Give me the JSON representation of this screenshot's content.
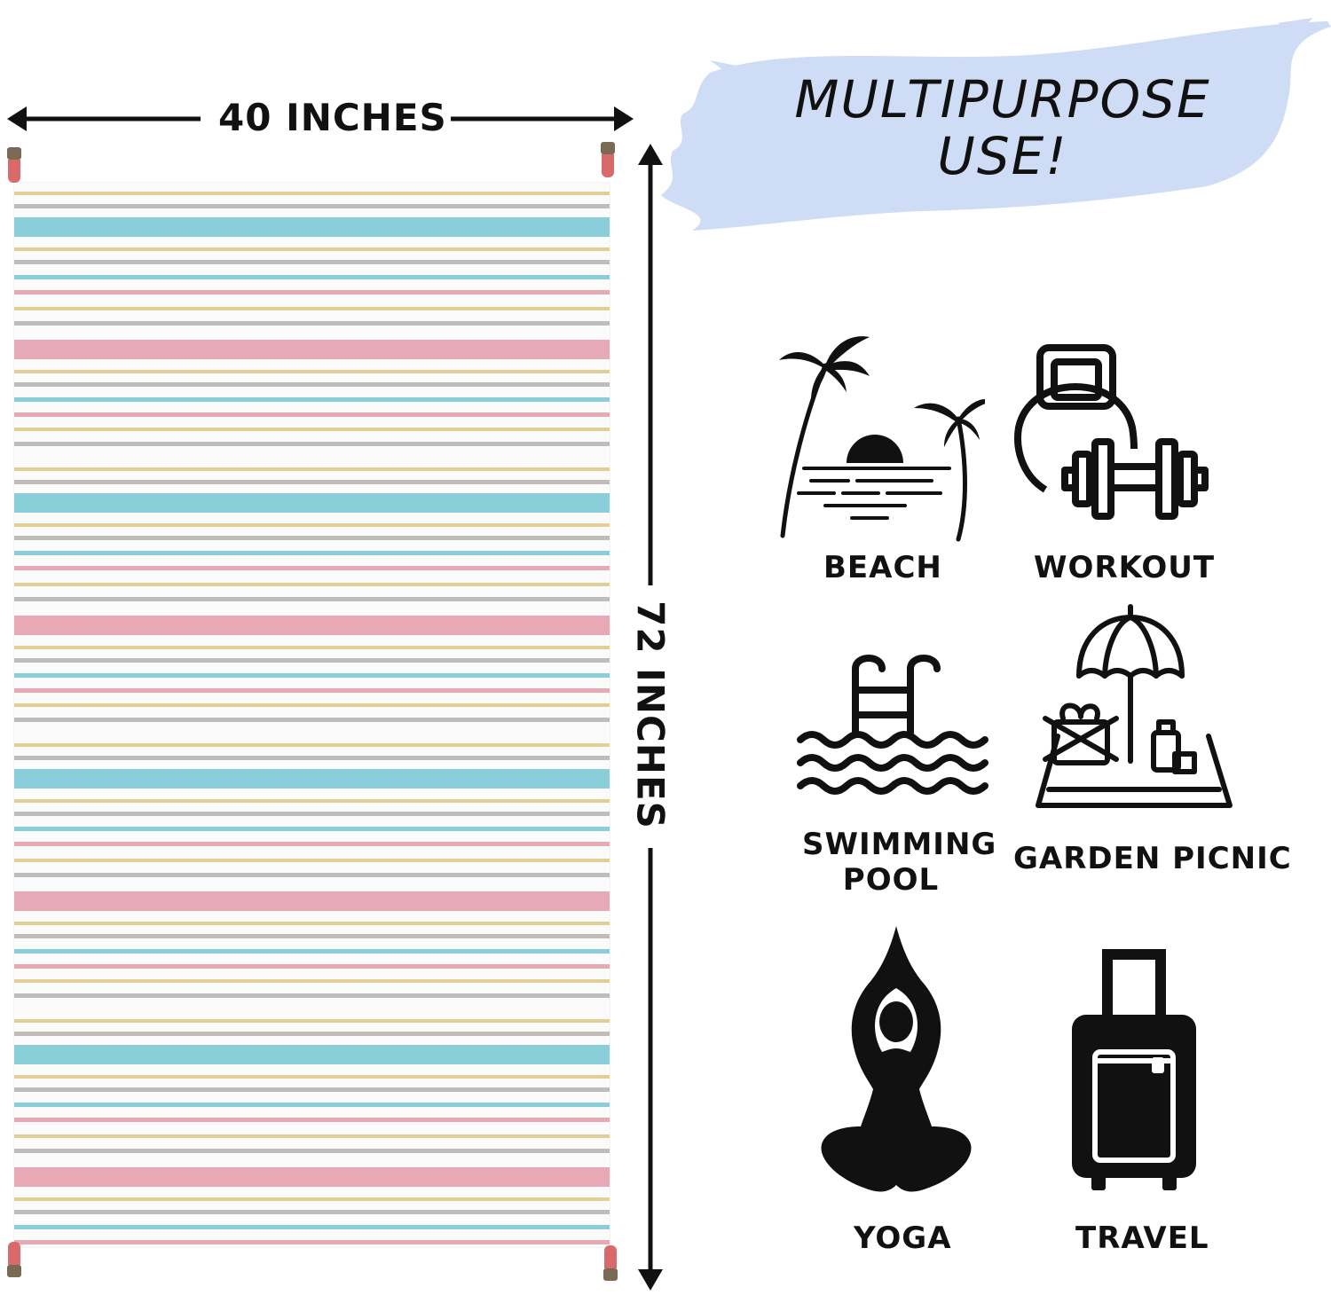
{
  "dimensions": {
    "width_label": "40 INCHES",
    "height_label": "72 INCHES"
  },
  "headline": {
    "line1": "MULTIPURPOSE",
    "line2": "USE!"
  },
  "uses": [
    {
      "label": "BEACH",
      "icon": "palm-beach-icon"
    },
    {
      "label": "WORKOUT",
      "icon": "kettlebell-dumbbell-icon"
    },
    {
      "label_line1": "SWIMMING",
      "label_line2": "POOL",
      "icon": "pool-ladder-icon"
    },
    {
      "label": "GARDEN PICNIC",
      "icon": "picnic-umbrella-icon"
    },
    {
      "label": "YOGA",
      "icon": "yoga-pose-icon"
    },
    {
      "label": "TRAVEL",
      "icon": "suitcase-icon"
    }
  ],
  "colors": {
    "stripe_blue": "#7cc9d4",
    "stripe_pink": "#e3a0ad",
    "stripe_gold": "#e0c98a",
    "stripe_gray": "#b9b5b1",
    "banner_blue": "#cfdcf5",
    "tassel_pink": "#d96a6a",
    "tassel_brown": "#7a6a55"
  }
}
